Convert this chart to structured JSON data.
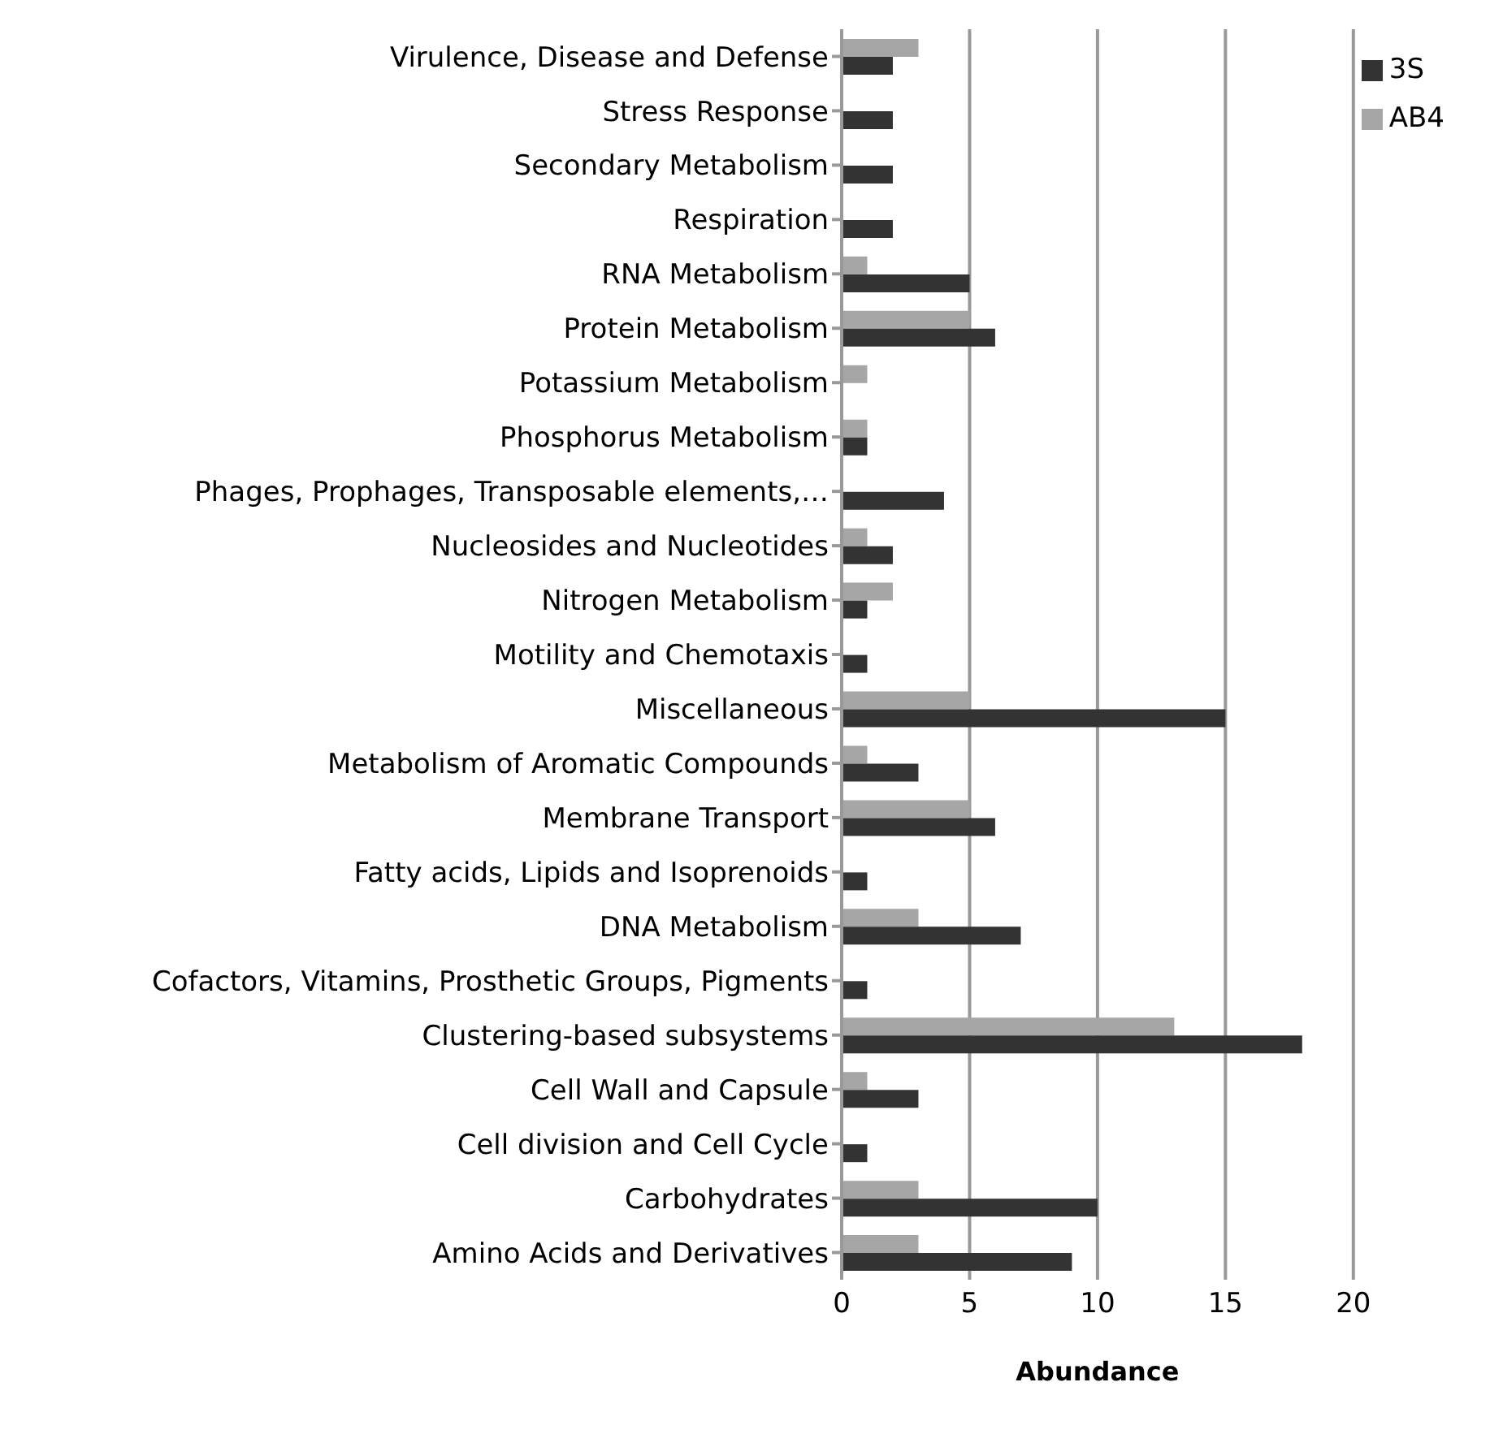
{
  "chart_data": {
    "type": "bar",
    "orientation": "horizontal",
    "xlabel": "Abundance",
    "categories": [
      "Virulence, Disease and Defense",
      "Stress Response",
      "Secondary Metabolism",
      "Respiration",
      "RNA Metabolism",
      "Protein Metabolism",
      "Potassium Metabolism",
      "Phosphorus Metabolism",
      "Phages, Prophages, Transposable elements,…",
      "Nucleosides and Nucleotides",
      "Nitrogen Metabolism",
      "Motility and Chemotaxis",
      "Miscellaneous",
      "Metabolism of Aromatic Compounds",
      "Membrane Transport",
      "Fatty acids, Lipids and Isoprenoids",
      "DNA Metabolism",
      "Cofactors, Vitamins, Prosthetic Groups, Pigments",
      "Clustering-based subsystems",
      "Cell Wall and Capsule",
      "Cell division and Cell Cycle",
      "Carbohydrates",
      "Amino Acids and Derivatives"
    ],
    "series": [
      {
        "name": "AB4",
        "color": "#a6a6a6",
        "values": [
          3,
          0,
          0,
          0,
          1,
          5,
          1,
          1,
          0,
          1,
          2,
          0,
          5,
          1,
          5,
          0,
          3,
          0,
          13,
          1,
          0,
          3,
          3
        ]
      },
      {
        "name": "3S",
        "color": "#333333",
        "values": [
          2,
          2,
          2,
          2,
          5,
          6,
          0,
          1,
          4,
          2,
          1,
          1,
          15,
          3,
          6,
          1,
          7,
          1,
          18,
          3,
          1,
          10,
          9
        ]
      }
    ],
    "xlim": [
      0,
      20
    ],
    "xticks": [
      0,
      5,
      10,
      15,
      20
    ],
    "grid": "x",
    "legend": "top right"
  }
}
